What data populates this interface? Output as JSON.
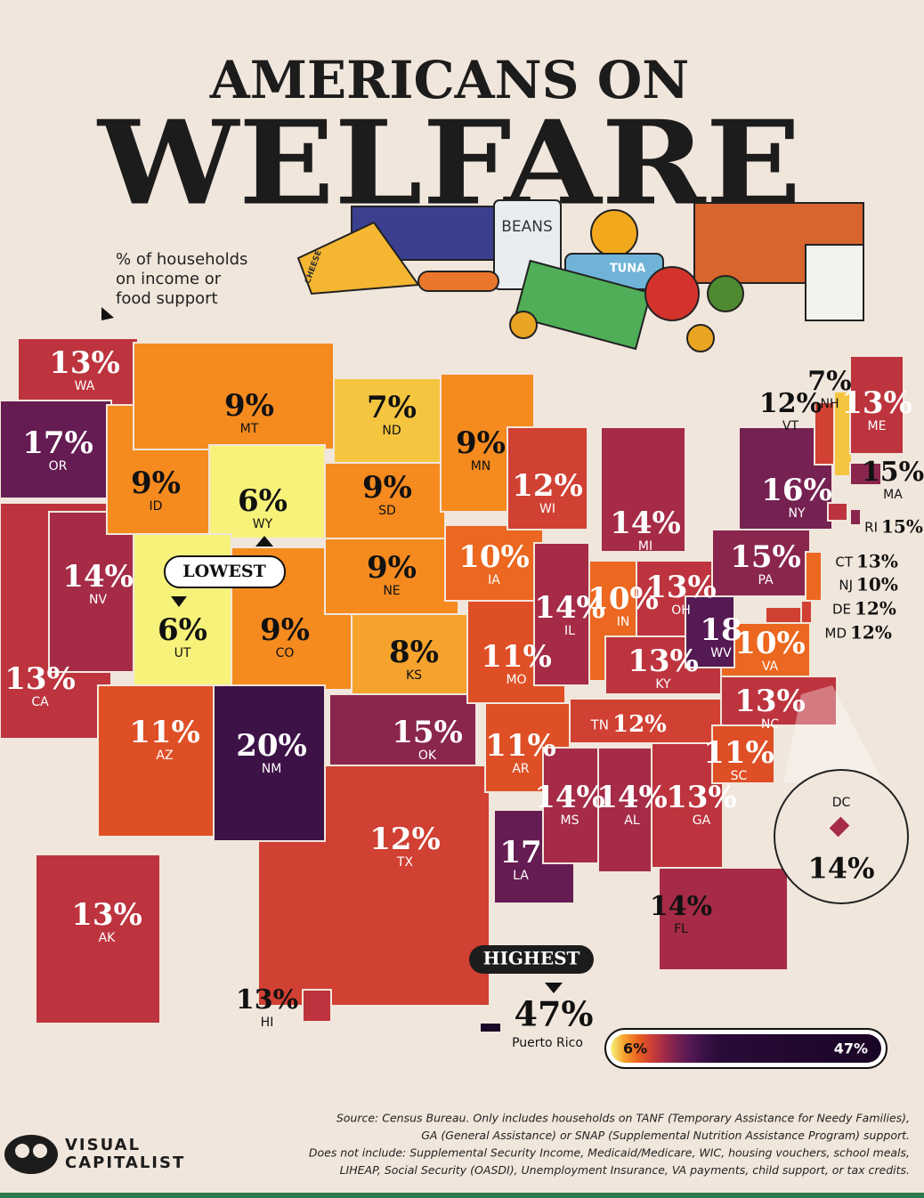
{
  "header": {
    "title_line1": "AMERICANS ON",
    "title_line2": "WELFARE",
    "subtitle": [
      "% of households",
      "on income or",
      "food support"
    ]
  },
  "illustration": {
    "beans": "BEANS",
    "tuna": "TUNA",
    "cheese": "CHEESE"
  },
  "states": [
    {
      "code": "TX",
      "value": 12,
      "label": "12%"
    },
    {
      "code": "CA",
      "value": 13,
      "label": "13%"
    },
    {
      "code": "WA",
      "value": 13,
      "label": "13%"
    },
    {
      "code": "OR",
      "value": 17,
      "label": "17%"
    },
    {
      "code": "NV",
      "value": 14,
      "label": "14%"
    },
    {
      "code": "ID",
      "value": 9,
      "label": "9%"
    },
    {
      "code": "MT",
      "value": 9,
      "label": "9%"
    },
    {
      "code": "WY",
      "value": 6,
      "label": "6%"
    },
    {
      "code": "UT",
      "value": 6,
      "label": "6%"
    },
    {
      "code": "CO",
      "value": 9,
      "label": "9%"
    },
    {
      "code": "AZ",
      "value": 11,
      "label": "11%"
    },
    {
      "code": "NM",
      "value": 20,
      "label": "20%"
    },
    {
      "code": "ND",
      "value": 7,
      "label": "7%"
    },
    {
      "code": "SD",
      "value": 9,
      "label": "9%"
    },
    {
      "code": "NE",
      "value": 9,
      "label": "9%"
    },
    {
      "code": "KS",
      "value": 8,
      "label": "8%"
    },
    {
      "code": "OK",
      "value": 15,
      "label": "15%"
    },
    {
      "code": "MN",
      "value": 9,
      "label": "9%"
    },
    {
      "code": "IA",
      "value": 10,
      "label": "10%"
    },
    {
      "code": "MO",
      "value": 11,
      "label": "11%"
    },
    {
      "code": "AR",
      "value": 11,
      "label": "11%"
    },
    {
      "code": "LA",
      "value": 17,
      "label": "17"
    },
    {
      "code": "WI",
      "value": 12,
      "label": "12%"
    },
    {
      "code": "IL",
      "value": 14,
      "label": "14%"
    },
    {
      "code": "MI",
      "value": 14,
      "label": "14%"
    },
    {
      "code": "IN",
      "value": 10,
      "label": "10%"
    },
    {
      "code": "OH",
      "value": 13,
      "label": "13%"
    },
    {
      "code": "KY",
      "value": 13,
      "label": "13%"
    },
    {
      "code": "TN",
      "value": 12,
      "label": "12%"
    },
    {
      "code": "MS",
      "value": 14,
      "label": "14%"
    },
    {
      "code": "AL",
      "value": 14,
      "label": "14%"
    },
    {
      "code": "GA",
      "value": 13,
      "label": "13%"
    },
    {
      "code": "FL",
      "value": 14,
      "label": "14%"
    },
    {
      "code": "SC",
      "value": 11,
      "label": "11%"
    },
    {
      "code": "NC",
      "value": 13,
      "label": "13%"
    },
    {
      "code": "VA",
      "value": 10,
      "label": "10%"
    },
    {
      "code": "WV",
      "value": 18,
      "label": "18"
    },
    {
      "code": "MD",
      "value": 12,
      "label": "12%"
    },
    {
      "code": "PA",
      "value": 15,
      "label": "15%"
    },
    {
      "code": "NY",
      "value": 16,
      "label": "16%"
    },
    {
      "code": "VT",
      "value": 12,
      "label": "12%"
    },
    {
      "code": "NH",
      "value": 7,
      "label": "7%"
    },
    {
      "code": "ME",
      "value": 13,
      "label": "13%"
    },
    {
      "code": "MA",
      "value": 15,
      "label": "15%"
    },
    {
      "code": "CT",
      "value": 13,
      "label": "13%"
    },
    {
      "code": "RI",
      "value": 15,
      "label": "15%"
    },
    {
      "code": "NJ",
      "value": 10,
      "label": "10%"
    },
    {
      "code": "DE",
      "value": 12,
      "label": "12%"
    },
    {
      "code": "AK",
      "value": 13,
      "label": "13%"
    },
    {
      "code": "HI",
      "value": 13,
      "label": "13%"
    }
  ],
  "dc": {
    "code": "DC",
    "value": 14,
    "label": "14%"
  },
  "puerto_rico": {
    "name": "Puerto Rico",
    "value": 47,
    "label": "47%"
  },
  "callouts": {
    "lowest": "LOWEST",
    "highest": "HIGHEST"
  },
  "legend": {
    "min": {
      "value": 6,
      "label": "6%"
    },
    "max": {
      "value": 47,
      "label": "47%"
    }
  },
  "source": [
    "Source: Census Bureau. Only includes households on TANF (Temporary Assistance for Needy Families),",
    "GA (General Assistance) or SNAP (Supplemental Nutrition Assistance Program) support.",
    "Does not include: Supplemental Security Income, Medicaid/Medicare, WIC, housing vouchers, school meals,",
    "LIHEAP, Social Security (OASDI), Unemployment Insurance, VA payments, child support, or tax credits."
  ],
  "brand": [
    "VISUAL",
    "CAPITALIST"
  ]
}
